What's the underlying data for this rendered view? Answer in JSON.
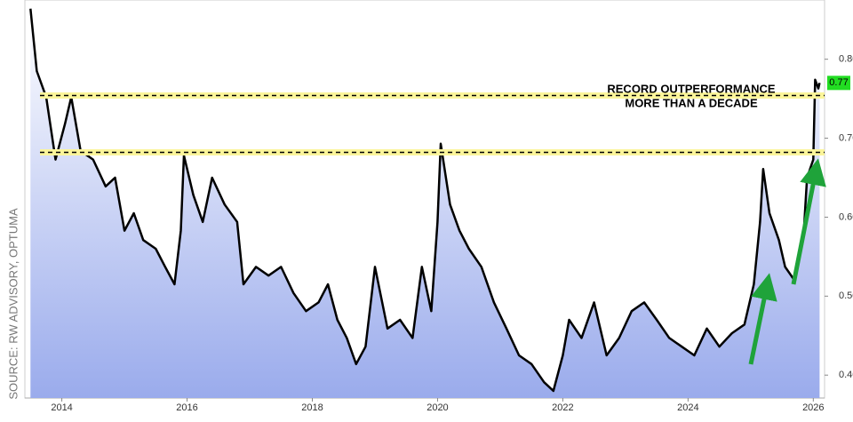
{
  "chart_data": {
    "type": "area",
    "annotations": [
      "RECORD OUTPERFORMANCE",
      "MORE THAN A DECADE"
    ],
    "source": "SOURCE: RW ADVISORY, OPTUMA",
    "x": [
      2013.5,
      2013.6,
      2013.75,
      2013.9,
      2014.05,
      2014.15,
      2014.3,
      2014.5,
      2014.7,
      2014.85,
      2015.0,
      2015.15,
      2015.3,
      2015.5,
      2015.65,
      2015.8,
      2015.9,
      2015.95,
      2016.1,
      2016.25,
      2016.4,
      2016.6,
      2016.8,
      2016.9,
      2017.1,
      2017.3,
      2017.5,
      2017.7,
      2017.9,
      2018.1,
      2018.25,
      2018.4,
      2018.55,
      2018.7,
      2018.85,
      2019.0,
      2019.2,
      2019.4,
      2019.6,
      2019.75,
      2019.9,
      2020.0,
      2020.05,
      2020.2,
      2020.35,
      2020.5,
      2020.7,
      2020.9,
      2021.1,
      2021.3,
      2021.5,
      2021.7,
      2021.85,
      2022.0,
      2022.1,
      2022.3,
      2022.5,
      2022.7,
      2022.9,
      2023.1,
      2023.3,
      2023.5,
      2023.7,
      2023.9,
      2024.1,
      2024.3,
      2024.5,
      2024.7,
      2024.9,
      2025.05,
      2025.15,
      2025.2,
      2025.3,
      2025.45,
      2025.55,
      2025.7,
      2025.85,
      2025.9,
      2026.0,
      2026.03,
      2026.08,
      2026.1
    ],
    "series": [
      {
        "color": "#000000",
        "fill": "#a9b8ef",
        "values": [
          0.864,
          0.785,
          0.752,
          0.673,
          0.718,
          0.752,
          0.684,
          0.673,
          0.639,
          0.65,
          0.583,
          0.605,
          0.571,
          0.56,
          0.537,
          0.515,
          0.583,
          0.678,
          0.628,
          0.594,
          0.65,
          0.616,
          0.594,
          0.515,
          0.537,
          0.526,
          0.537,
          0.504,
          0.481,
          0.492,
          0.515,
          0.47,
          0.447,
          0.414,
          0.436,
          0.537,
          0.459,
          0.47,
          0.447,
          0.537,
          0.481,
          0.594,
          0.693,
          0.616,
          0.583,
          0.56,
          0.537,
          0.492,
          0.459,
          0.425,
          0.414,
          0.391,
          0.38,
          0.425,
          0.47,
          0.447,
          0.492,
          0.425,
          0.447,
          0.481,
          0.492,
          0.47,
          0.447,
          0.436,
          0.425,
          0.459,
          0.436,
          0.453,
          0.464,
          0.515,
          0.594,
          0.661,
          0.605,
          0.571,
          0.537,
          0.52,
          0.583,
          0.65,
          0.673,
          0.774,
          0.763,
          0.77
        ]
      }
    ],
    "last_value": 0.77,
    "reference_lines": [
      0.754,
      0.682
    ],
    "xlim": [
      2013.41,
      2026.18
    ],
    "ylim": [
      0.371,
      0.875
    ],
    "xticks": [
      2014,
      2016,
      2018,
      2020,
      2022,
      2024,
      2026
    ],
    "yticks": [
      {
        "value": 0.4,
        "label": "0.40"
      },
      {
        "value": 0.5,
        "label": "0.50"
      },
      {
        "value": 0.6,
        "label": "0.60"
      },
      {
        "value": 0.7,
        "label": "0.70"
      },
      {
        "value": 0.8,
        "label": "0.80"
      }
    ]
  }
}
